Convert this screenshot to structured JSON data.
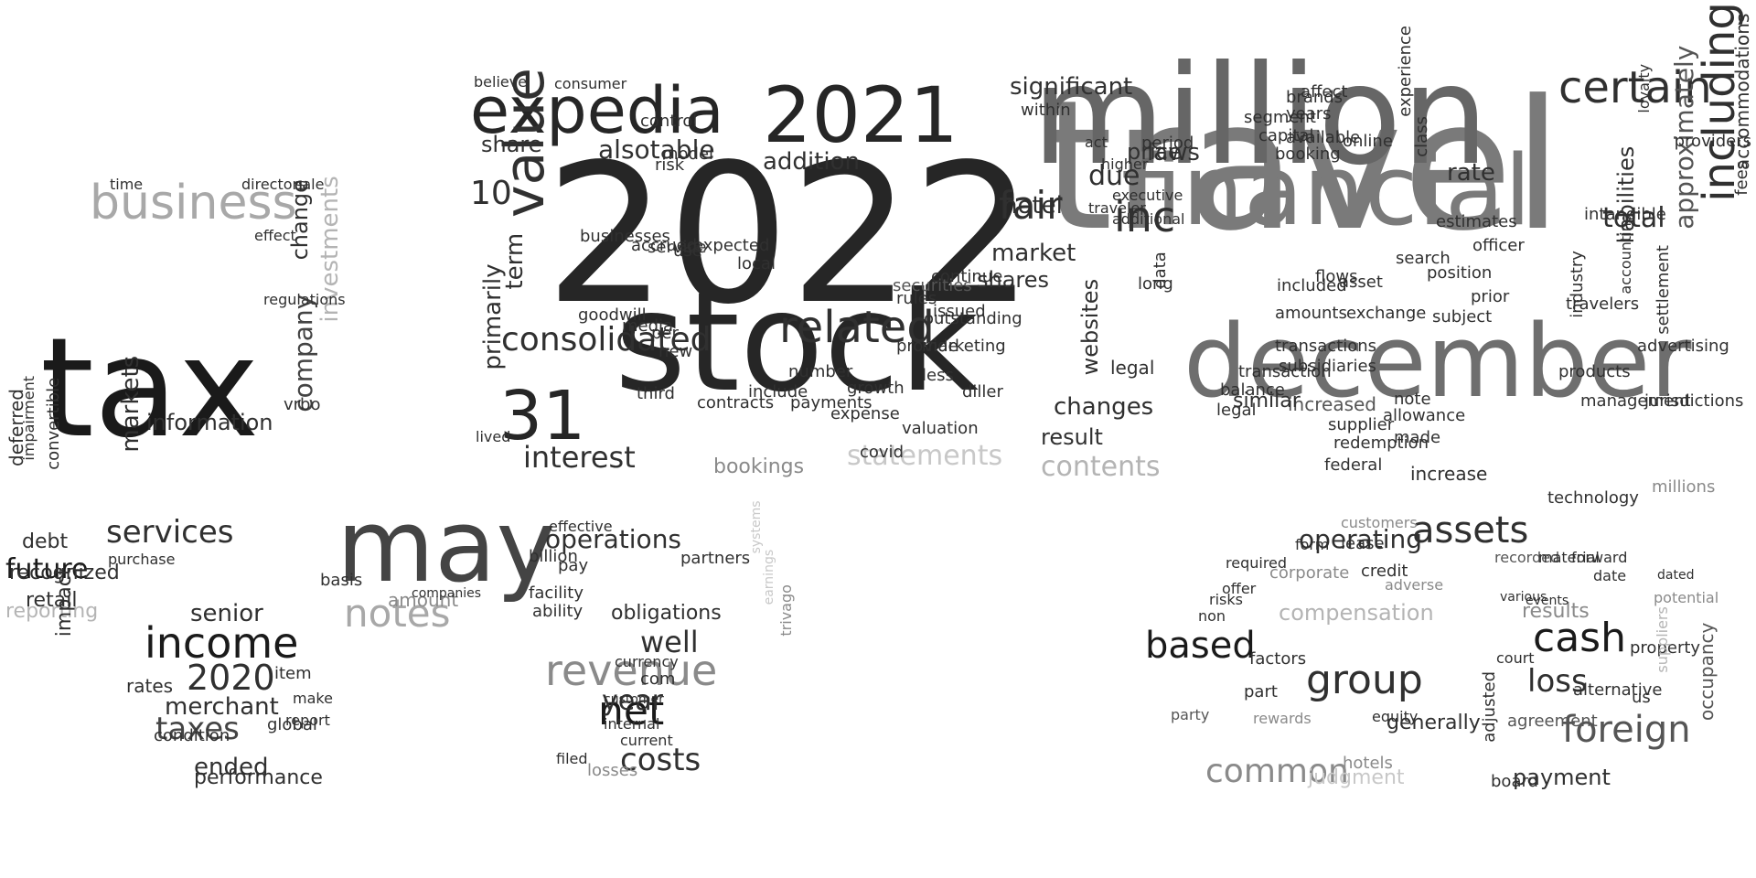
{
  "cloud": {
    "words": [
      {
        "text": "2022",
        "color": "#262626"
      },
      {
        "text": "travel",
        "color": "#7a7a7a"
      },
      {
        "text": "million",
        "color": "#666666"
      },
      {
        "text": "stock",
        "color": "#262626"
      },
      {
        "text": "tax",
        "color": "#1a1a1a"
      },
      {
        "text": "december",
        "color": "#6e6e6e"
      },
      {
        "text": "financial",
        "color": "#7a7a7a"
      },
      {
        "text": "may",
        "color": "#444444"
      },
      {
        "text": "expedia",
        "color": "#262626"
      },
      {
        "text": "2021",
        "color": "#262626"
      },
      {
        "text": "31",
        "color": "#262626"
      },
      {
        "text": "business",
        "color": "#a8a8a8"
      },
      {
        "text": "value",
        "color": "#303030"
      },
      {
        "text": "related",
        "color": "#303030"
      },
      {
        "text": "certain",
        "color": "#303030"
      },
      {
        "text": "including",
        "color": "#303030"
      },
      {
        "text": "inc",
        "color": "#303030"
      },
      {
        "text": "fair",
        "color": "#303030"
      },
      {
        "text": "income",
        "color": "#1a1a1a"
      },
      {
        "text": "revenue",
        "color": "#8a8a8a"
      },
      {
        "text": "net",
        "color": "#1a1a1a"
      },
      {
        "text": "group",
        "color": "#303030"
      },
      {
        "text": "based",
        "color": "#1a1a1a"
      },
      {
        "text": "cash",
        "color": "#1a1a1a"
      },
      {
        "text": "foreign",
        "color": "#555555"
      },
      {
        "text": "assets",
        "color": "#303030"
      },
      {
        "text": "common",
        "color": "#8a8a8a"
      },
      {
        "text": "notes",
        "color": "#a8a8a8"
      },
      {
        "text": "consolidated",
        "color": "#303030"
      },
      {
        "text": "interest",
        "color": "#303030"
      },
      {
        "text": "2020",
        "color": "#303030"
      },
      {
        "text": "services",
        "color": "#303030"
      },
      {
        "text": "future",
        "color": "#1a1a1a"
      },
      {
        "text": "operations",
        "color": "#303030"
      },
      {
        "text": "operating",
        "color": "#303030"
      },
      {
        "text": "taxes",
        "color": "#444444"
      },
      {
        "text": "loss",
        "color": "#303030"
      },
      {
        "text": "costs",
        "color": "#303030"
      },
      {
        "text": "statements",
        "color": "#c8c8c8"
      },
      {
        "text": "contents",
        "color": "#b4b4b4"
      },
      {
        "text": "10",
        "color": "#303030"
      },
      {
        "text": "total",
        "color": "#303030"
      },
      {
        "text": "significant",
        "color": "#303030"
      },
      {
        "text": "alsotable",
        "color": "#303030"
      },
      {
        "text": "year",
        "color": "#303030"
      },
      {
        "text": "well",
        "color": "#303030"
      },
      {
        "text": "due",
        "color": "#303030"
      },
      {
        "text": "market",
        "color": "#303030"
      },
      {
        "text": "shares",
        "color": "#303030"
      },
      {
        "text": "addition",
        "color": "#303030"
      },
      {
        "text": "price",
        "color": "#303030"
      },
      {
        "text": "rate",
        "color": "#303030"
      },
      {
        "text": "senior",
        "color": "#303030"
      },
      {
        "text": "merchant",
        "color": "#303030"
      },
      {
        "text": "ended",
        "color": "#303030"
      },
      {
        "text": "information",
        "color": "#303030"
      },
      {
        "text": "company",
        "color": "#444444"
      },
      {
        "text": "investments",
        "color": "#b4b4b4"
      },
      {
        "text": "reporting",
        "color": "#b4b4b4"
      },
      {
        "text": "changes",
        "color": "#303030"
      },
      {
        "text": "result",
        "color": "#303030"
      },
      {
        "text": "bookings",
        "color": "#8a8a8a"
      },
      {
        "text": "websites",
        "color": "#303030"
      },
      {
        "text": "hotel",
        "color": "#303030"
      },
      {
        "text": "share",
        "color": "#303030"
      },
      {
        "text": "term",
        "color": "#303030"
      },
      {
        "text": "primarily",
        "color": "#303030"
      },
      {
        "text": "performance",
        "color": "#303030"
      },
      {
        "text": "amount",
        "color": "#8a8a8a"
      },
      {
        "text": "compensation",
        "color": "#b4b4b4"
      },
      {
        "text": "payment",
        "color": "#303030"
      },
      {
        "text": "results",
        "color": "#8a8a8a"
      },
      {
        "text": "generally",
        "color": "#303030"
      },
      {
        "text": "increase",
        "color": "#303030"
      },
      {
        "text": "increased",
        "color": "#555555"
      },
      {
        "text": "approximately",
        "color": "#555555"
      },
      {
        "text": "liabilities",
        "color": "#303030"
      },
      {
        "text": "accommodations",
        "color": "#303030"
      },
      {
        "text": "obligations",
        "color": "#303030"
      },
      {
        "text": "time",
        "color": "#303030"
      },
      {
        "text": "directors",
        "color": "#303030"
      },
      {
        "text": "sale",
        "color": "#303030"
      },
      {
        "text": "effect",
        "color": "#303030"
      },
      {
        "text": "change",
        "color": "#303030"
      },
      {
        "text": "regulations",
        "color": "#303030"
      },
      {
        "text": "vrbo",
        "color": "#303030"
      },
      {
        "text": "markets",
        "color": "#303030"
      },
      {
        "text": "recognized",
        "color": "#303030"
      },
      {
        "text": "debt",
        "color": "#303030"
      },
      {
        "text": "deferred",
        "color": "#303030"
      },
      {
        "text": "impairment",
        "color": "#303030"
      },
      {
        "text": "convertible",
        "color": "#303030"
      },
      {
        "text": "purchase",
        "color": "#303030"
      },
      {
        "text": "retail",
        "color": "#303030"
      },
      {
        "text": "impact",
        "color": "#303030"
      },
      {
        "text": "rates",
        "color": "#303030"
      },
      {
        "text": "global",
        "color": "#303030"
      },
      {
        "text": "item",
        "color": "#303030"
      },
      {
        "text": "make",
        "color": "#303030"
      },
      {
        "text": "report",
        "color": "#303030"
      },
      {
        "text": "condition",
        "color": "#303030"
      },
      {
        "text": "basis",
        "color": "#303030"
      },
      {
        "text": "companies",
        "color": "#303030"
      },
      {
        "text": "facility",
        "color": "#303030"
      },
      {
        "text": "ability",
        "color": "#303030"
      },
      {
        "text": "billion",
        "color": "#303030"
      },
      {
        "text": "pay",
        "color": "#303030"
      },
      {
        "text": "effective",
        "color": "#303030"
      },
      {
        "text": "partners",
        "color": "#303030"
      },
      {
        "text": "com",
        "color": "#303030"
      },
      {
        "text": "currency",
        "color": "#303030"
      },
      {
        "text": "customer",
        "color": "#303030"
      },
      {
        "text": "internal",
        "color": "#303030"
      },
      {
        "text": "current",
        "color": "#303030"
      },
      {
        "text": "filed",
        "color": "#303030"
      },
      {
        "text": "losses",
        "color": "#8a8a8a"
      },
      {
        "text": "trivago",
        "color": "#8a8a8a"
      },
      {
        "text": "earnings",
        "color": "#c8c8c8"
      },
      {
        "text": "systems",
        "color": "#c8c8c8"
      },
      {
        "text": "judgment",
        "color": "#c8c8c8"
      },
      {
        "text": "hotels",
        "color": "#8a8a8a"
      },
      {
        "text": "equity",
        "color": "#303030"
      },
      {
        "text": "lease",
        "color": "#303030"
      },
      {
        "text": "credit",
        "color": "#303030"
      },
      {
        "text": "form",
        "color": "#303030"
      },
      {
        "text": "required",
        "color": "#303030"
      },
      {
        "text": "offer",
        "color": "#303030"
      },
      {
        "text": "risks",
        "color": "#303030"
      },
      {
        "text": "non",
        "color": "#303030"
      },
      {
        "text": "party",
        "color": "#555555"
      },
      {
        "text": "factors",
        "color": "#303030"
      },
      {
        "text": "part",
        "color": "#303030"
      },
      {
        "text": "rewards",
        "color": "#8a8a8a"
      },
      {
        "text": "corporate",
        "color": "#8a8a8a"
      },
      {
        "text": "customers",
        "color": "#8a8a8a"
      },
      {
        "text": "adverse",
        "color": "#8a8a8a"
      },
      {
        "text": "adjusted",
        "color": "#303030"
      },
      {
        "text": "court",
        "color": "#303030"
      },
      {
        "text": "alternative",
        "color": "#303030"
      },
      {
        "text": "agreement",
        "color": "#555555"
      },
      {
        "text": "property",
        "color": "#303030"
      },
      {
        "text": "us",
        "color": "#303030"
      },
      {
        "text": "occupancy",
        "color": "#555555"
      },
      {
        "text": "recorded",
        "color": "#555555"
      },
      {
        "text": "material",
        "color": "#303030"
      },
      {
        "text": "forward",
        "color": "#303030"
      },
      {
        "text": "date",
        "color": "#303030"
      },
      {
        "text": "potential",
        "color": "#8a8a8a"
      },
      {
        "text": "suppliers",
        "color": "#b4b4b4"
      },
      {
        "text": "board",
        "color": "#303030"
      },
      {
        "text": "dated",
        "color": "#303030"
      },
      {
        "text": "events",
        "color": "#303030"
      },
      {
        "text": "various",
        "color": "#303030"
      },
      {
        "text": "similar",
        "color": "#303030"
      },
      {
        "text": "balance",
        "color": "#303030"
      },
      {
        "text": "legal",
        "color": "#303030"
      },
      {
        "text": "transaction",
        "color": "#303030"
      },
      {
        "text": "transactions",
        "color": "#303030"
      },
      {
        "text": "subsidiaries",
        "color": "#303030"
      },
      {
        "text": "amounts",
        "color": "#303030"
      },
      {
        "text": "included",
        "color": "#303030"
      },
      {
        "text": "long",
        "color": "#303030"
      },
      {
        "text": "data",
        "color": "#303030"
      },
      {
        "text": "period",
        "color": "#303030"
      },
      {
        "text": "laws",
        "color": "#303030"
      },
      {
        "text": "executive",
        "color": "#303030"
      },
      {
        "text": "additional",
        "color": "#303030"
      },
      {
        "text": "within",
        "color": "#303030"
      },
      {
        "text": "segment",
        "color": "#303030"
      },
      {
        "text": "capital",
        "color": "#303030"
      },
      {
        "text": "booking",
        "color": "#303030"
      },
      {
        "text": "brands",
        "color": "#303030"
      },
      {
        "text": "affect",
        "color": "#303030"
      },
      {
        "text": "years",
        "color": "#303030"
      },
      {
        "text": "available",
        "color": "#303030"
      },
      {
        "text": "online",
        "color": "#303030"
      },
      {
        "text": "experience",
        "color": "#303030"
      },
      {
        "text": "class",
        "color": "#303030"
      },
      {
        "text": "estimates",
        "color": "#303030"
      },
      {
        "text": "officer",
        "color": "#303030"
      },
      {
        "text": "search",
        "color": "#303030"
      },
      {
        "text": "flows",
        "color": "#303030"
      },
      {
        "text": "asset",
        "color": "#303030"
      },
      {
        "text": "exchange",
        "color": "#303030"
      },
      {
        "text": "position",
        "color": "#303030"
      },
      {
        "text": "subject",
        "color": "#303030"
      },
      {
        "text": "prior",
        "color": "#303030"
      },
      {
        "text": "travelers",
        "color": "#303030"
      },
      {
        "text": "industry",
        "color": "#303030"
      },
      {
        "text": "products",
        "color": "#303030"
      },
      {
        "text": "management",
        "color": "#303030"
      },
      {
        "text": "jurisdictions",
        "color": "#303030"
      },
      {
        "text": "technology",
        "color": "#303030"
      },
      {
        "text": "millions",
        "color": "#8a8a8a"
      },
      {
        "text": "made",
        "color": "#303030"
      },
      {
        "text": "supplier",
        "color": "#303030"
      },
      {
        "text": "redemption",
        "color": "#303030"
      },
      {
        "text": "federal",
        "color": "#303030"
      },
      {
        "text": "note",
        "color": "#303030"
      },
      {
        "text": "allowance",
        "color": "#303030"
      },
      {
        "text": "advertising",
        "color": "#303030"
      },
      {
        "text": "settlement",
        "color": "#303030"
      },
      {
        "text": "fees",
        "color": "#303030"
      },
      {
        "text": "providers",
        "color": "#303030"
      },
      {
        "text": "loyalty",
        "color": "#303030"
      },
      {
        "text": "intangible",
        "color": "#303030"
      },
      {
        "text": "accounting",
        "color": "#303030"
      },
      {
        "text": "use",
        "color": "#303030"
      },
      {
        "text": "local",
        "color": "#303030"
      },
      {
        "text": "expected",
        "color": "#303030"
      },
      {
        "text": "service",
        "color": "#303030"
      },
      {
        "text": "risk",
        "color": "#303030"
      },
      {
        "text": "model",
        "color": "#303030"
      },
      {
        "text": "control",
        "color": "#303030"
      },
      {
        "text": "accrued",
        "color": "#303030"
      },
      {
        "text": "businesses",
        "color": "#303030"
      },
      {
        "text": "goodwill",
        "color": "#303030"
      },
      {
        "text": "media",
        "color": "#303030"
      },
      {
        "text": "new",
        "color": "#303030"
      },
      {
        "text": "per",
        "color": "#303030"
      },
      {
        "text": "third",
        "color": "#303030"
      },
      {
        "text": "contracts",
        "color": "#303030"
      },
      {
        "text": "include",
        "color": "#303030"
      },
      {
        "text": "number",
        "color": "#303030"
      },
      {
        "text": "payments",
        "color": "#303030"
      },
      {
        "text": "expense",
        "color": "#303030"
      },
      {
        "text": "growth",
        "color": "#303030"
      },
      {
        "text": "covid",
        "color": "#303030"
      },
      {
        "text": "valuation",
        "color": "#303030"
      },
      {
        "text": "marketing",
        "color": "#303030"
      },
      {
        "text": "outstanding",
        "color": "#303030"
      },
      {
        "text": "issued",
        "color": "#303030"
      },
      {
        "text": "rules",
        "color": "#303030"
      },
      {
        "text": "continue",
        "color": "#303030"
      },
      {
        "text": "provide",
        "color": "#303030"
      },
      {
        "text": "less",
        "color": "#303030"
      },
      {
        "text": "diller",
        "color": "#303030"
      },
      {
        "text": "securities",
        "color": "#555555"
      },
      {
        "text": "believe",
        "color": "#303030"
      },
      {
        "text": "consumer",
        "color": "#303030"
      },
      {
        "text": "lived",
        "color": "#303030"
      },
      {
        "text": "traveler",
        "color": "#303030"
      },
      {
        "text": "act",
        "color": "#303030"
      },
      {
        "text": "higher",
        "color": "#303030"
      },
      {
        "text": "legal",
        "color": "#303030"
      }
    ]
  }
}
